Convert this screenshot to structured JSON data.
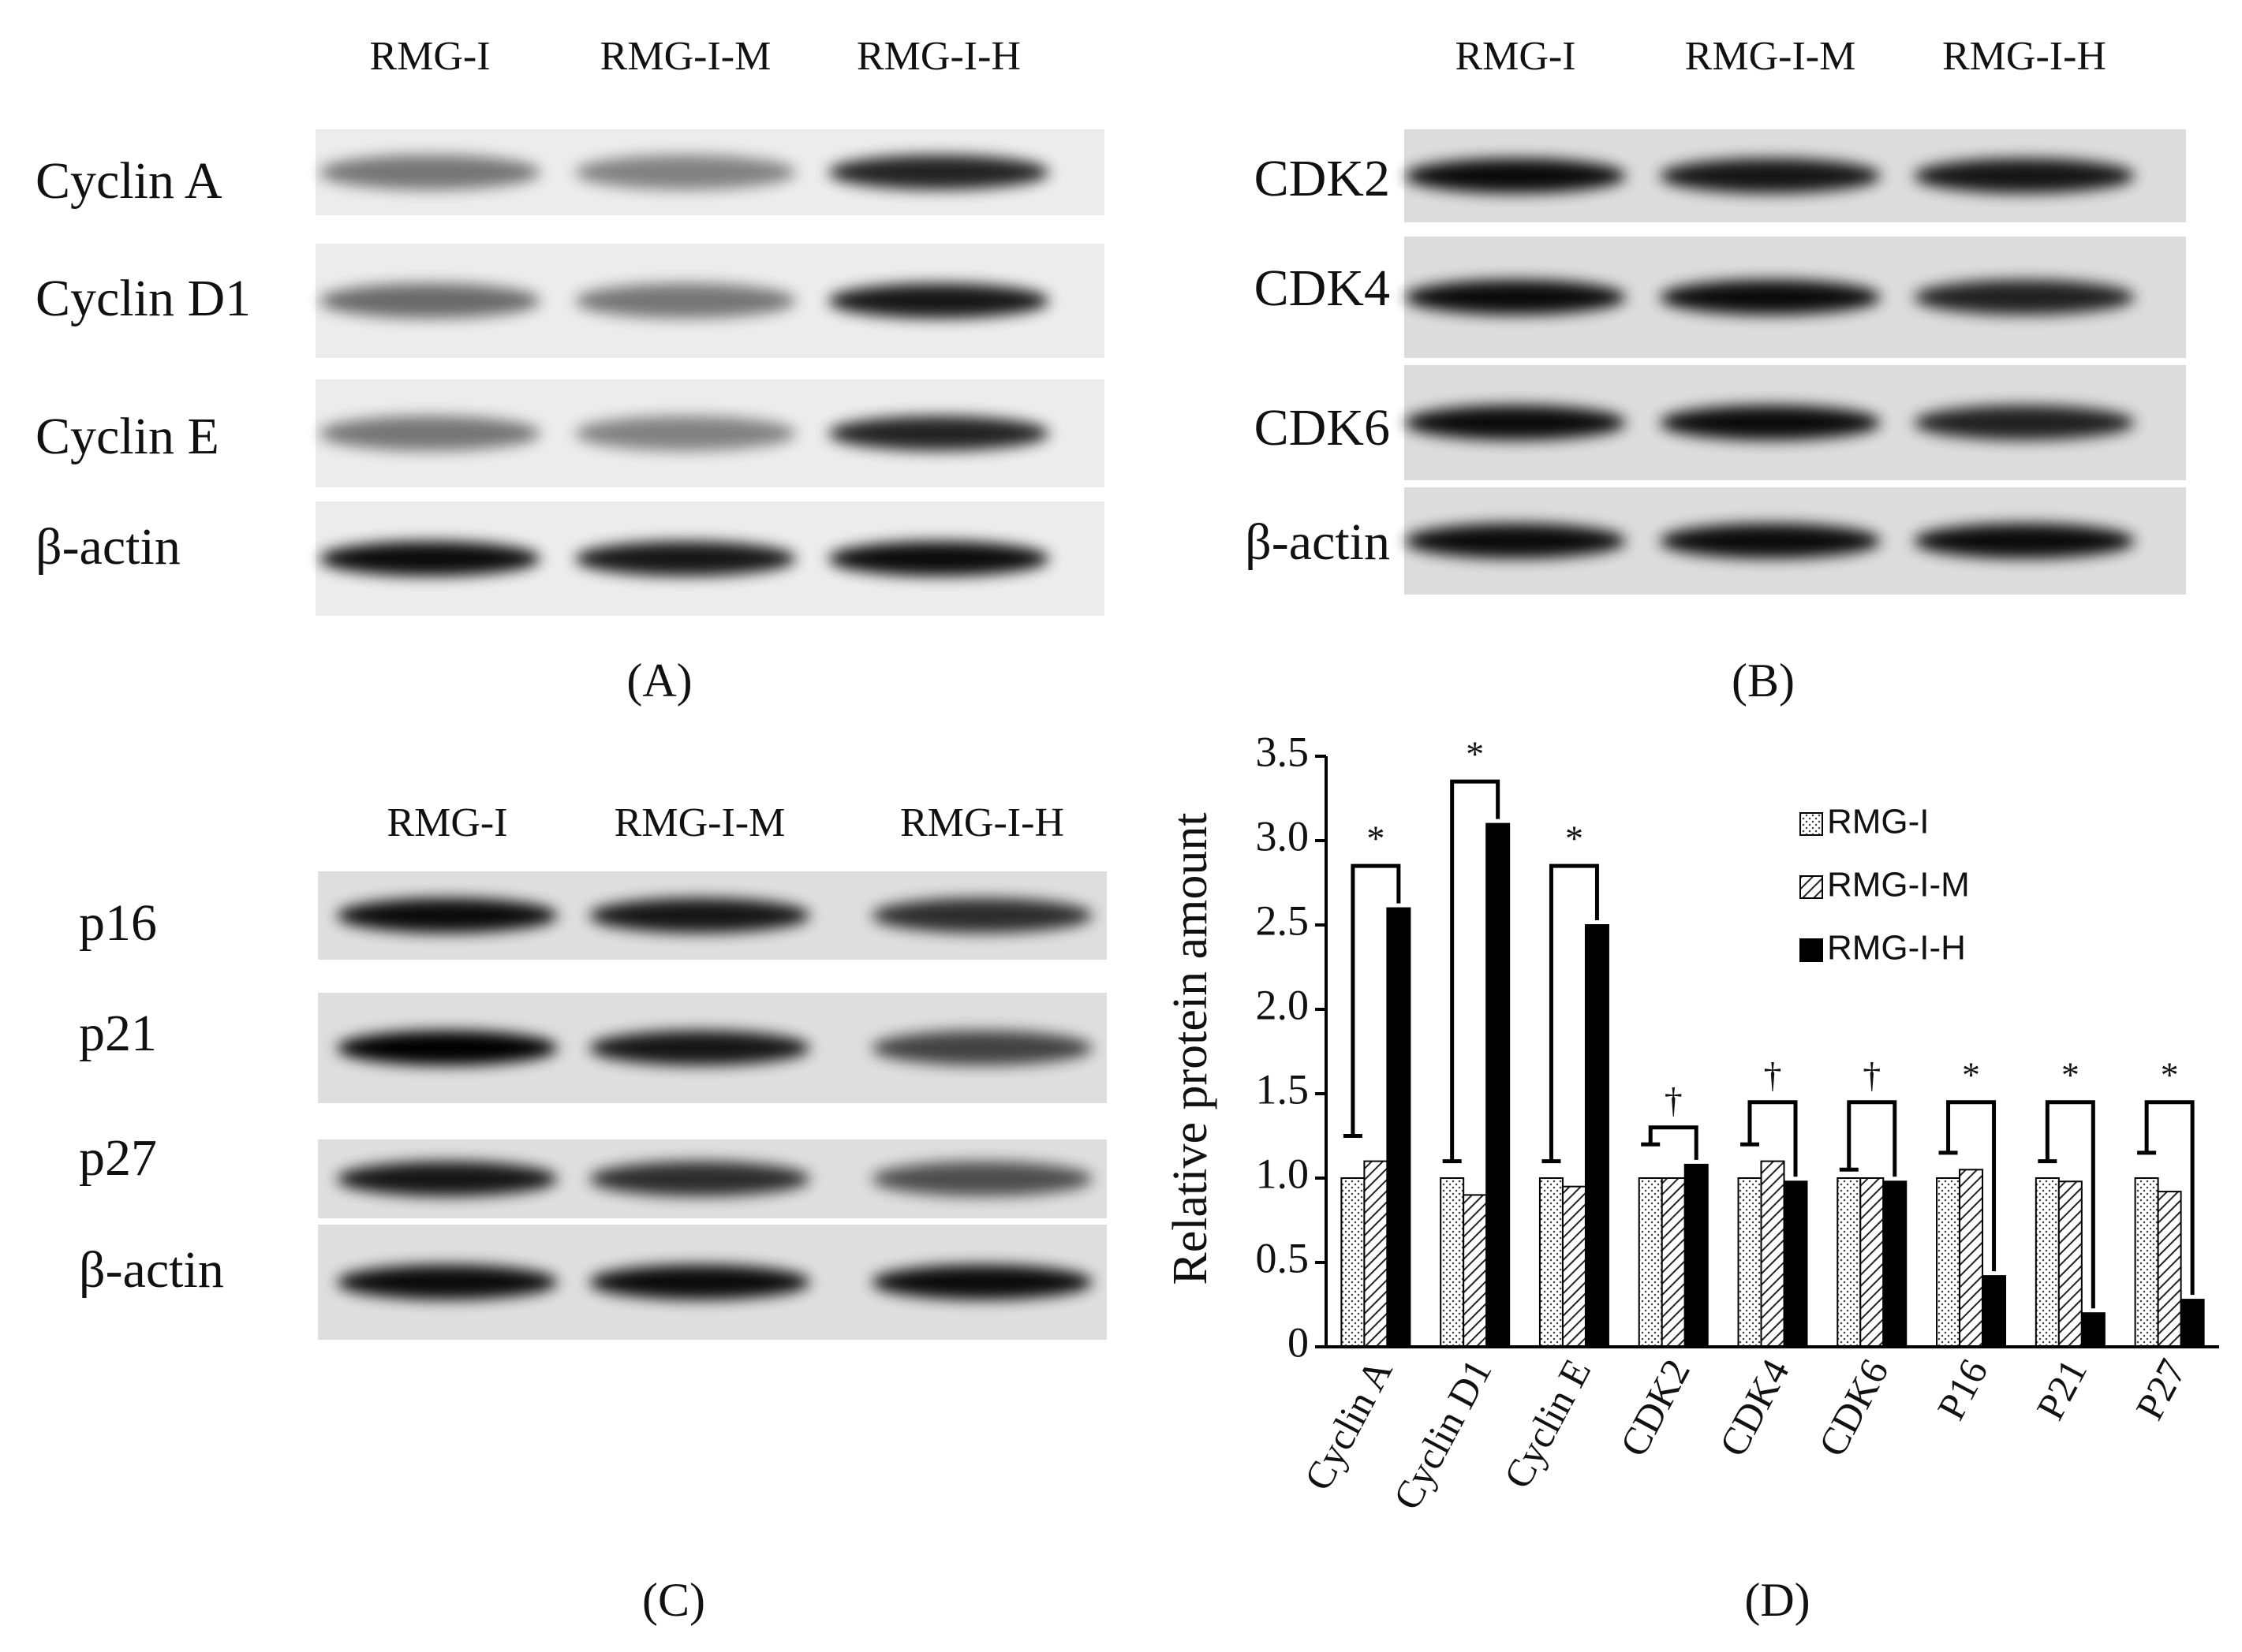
{
  "panel_a": {
    "columns": [
      "RMG-I",
      "RMG-I-M",
      "RMG-I-H"
    ],
    "rows": [
      "Cyclin A",
      "Cyclin D1",
      "Cyclin E",
      "β-actin"
    ],
    "caption": "(A)"
  },
  "panel_b": {
    "columns": [
      "RMG-I",
      "RMG-I-M",
      "RMG-I-H"
    ],
    "rows": [
      "CDK2",
      "CDK4",
      "CDK6",
      "β-actin"
    ],
    "caption": "(B)"
  },
  "panel_c": {
    "columns": [
      "RMG-I",
      "RMG-I-M",
      "RMG-I-H"
    ],
    "rows": [
      "p16",
      "p21",
      "p27",
      "β-actin"
    ],
    "caption": "(C)"
  },
  "chart_data": {
    "type": "bar",
    "caption": "(D)",
    "y_label": "Relative protein amount",
    "categories": [
      "Cyclin A",
      "Cyclin D1",
      "Cyclin E",
      "CDK2",
      "CDK4",
      "CDK6",
      "P16",
      "P21",
      "P27"
    ],
    "series": [
      {
        "name": "RMG-I",
        "color": "#ffffff",
        "pattern": "dots",
        "values": [
          1.0,
          1.0,
          1.0,
          1.0,
          1.0,
          1.0,
          1.0,
          1.0,
          1.0
        ]
      },
      {
        "name": "RMG-I-M",
        "color": "#ffffff",
        "pattern": "hatch",
        "values": [
          1.1,
          0.9,
          0.95,
          1.0,
          1.1,
          1.0,
          1.05,
          0.98,
          0.92
        ]
      },
      {
        "name": "RMG-I-H",
        "color": "#000000",
        "pattern": "solid",
        "values": [
          2.6,
          3.1,
          2.5,
          1.08,
          0.98,
          0.98,
          0.42,
          0.2,
          0.28
        ]
      }
    ],
    "ylim": [
      0,
      3.5
    ],
    "yticks": [
      0,
      0.5,
      {
        "value": 1,
        "label": "1.0"
      },
      1.5,
      {
        "value": 2,
        "label": "2.0"
      },
      2.5,
      {
        "value": 3,
        "label": "3.0"
      },
      3.5
    ],
    "brackets": [
      {
        "category": "Cyclin A",
        "low": 1.25,
        "top": 2.85,
        "label": "*"
      },
      {
        "category": "Cyclin D1",
        "low": 1.1,
        "top": 3.35,
        "label": "*"
      },
      {
        "category": "Cyclin E",
        "low": 1.1,
        "top": 2.85,
        "label": "*"
      },
      {
        "category": "CDK2",
        "low": 1.2,
        "top": 1.3,
        "label": "†"
      },
      {
        "category": "CDK4",
        "low": 1.2,
        "top": 1.45,
        "label": "†"
      },
      {
        "category": "CDK6",
        "low": 1.05,
        "top": 1.45,
        "label": "†"
      },
      {
        "category": "P16",
        "low": 1.15,
        "top": 1.45,
        "label": "*"
      },
      {
        "category": "P21",
        "low": 1.1,
        "top": 1.45,
        "label": "*"
      },
      {
        "category": "P27",
        "low": 1.15,
        "top": 1.45,
        "label": "*"
      }
    ]
  }
}
